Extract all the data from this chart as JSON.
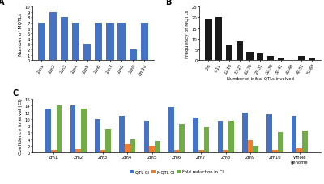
{
  "A": {
    "categories": [
      "Zm1",
      "Zm2",
      "Zm3",
      "Zm4",
      "Zm5",
      "Zm6",
      "Zm7",
      "Zm8",
      "Zm9",
      "Zm10"
    ],
    "values": [
      7,
      9,
      8,
      7,
      3,
      7,
      7,
      7,
      2,
      7
    ],
    "color": "#4472C4",
    "ylabel": "Number of MQTLs",
    "ylim": [
      0,
      10
    ],
    "yticks": [
      0,
      1,
      2,
      3,
      4,
      5,
      6,
      7,
      8,
      9,
      10
    ]
  },
  "B": {
    "categories": [
      "2-6",
      "7-11",
      "12-16",
      "17-21",
      "22-26",
      "27-31",
      "32-36",
      "37-41",
      "42-46",
      "47-51",
      "52-64"
    ],
    "values": [
      19,
      20,
      7,
      9,
      4,
      3,
      2,
      1,
      0,
      2,
      1
    ],
    "color": "#1a1a1a",
    "ylabel": "Frequency of MQTLs",
    "xlabel": "Number of initial QTLs involved",
    "ylim": [
      0,
      25
    ],
    "yticks": [
      0,
      5,
      10,
      15,
      20,
      25
    ]
  },
  "C": {
    "categories": [
      "Zm1",
      "Zm2",
      "Zm3",
      "Zm4",
      "Zm5",
      "Zm6",
      "Zm7",
      "Zm8",
      "Zm9",
      "Zm10",
      "Whole\ngenome"
    ],
    "qtl_ci": [
      13,
      14,
      10,
      11,
      9.5,
      13.5,
      10.5,
      9.5,
      12,
      11.5,
      11
    ],
    "mqtl_ci": [
      0.8,
      1.0,
      0.9,
      2.5,
      2.0,
      0.9,
      0.8,
      0.7,
      3.8,
      0.9,
      1.2
    ],
    "fold_ci": [
      14,
      13,
      7,
      4,
      3.5,
      8.5,
      7.5,
      9.5,
      2,
      6,
      6.5
    ],
    "colors": [
      "#4472C4",
      "#ED7D31",
      "#70AD47"
    ],
    "ylabel": "Confidence interval (CI)",
    "ylim": [
      0,
      16
    ],
    "yticks": [
      0,
      2,
      4,
      6,
      8,
      10,
      12,
      14,
      16
    ],
    "legend_labels": [
      "QTL CI",
      "MQTL CI",
      "Fold reduction in CI"
    ]
  }
}
